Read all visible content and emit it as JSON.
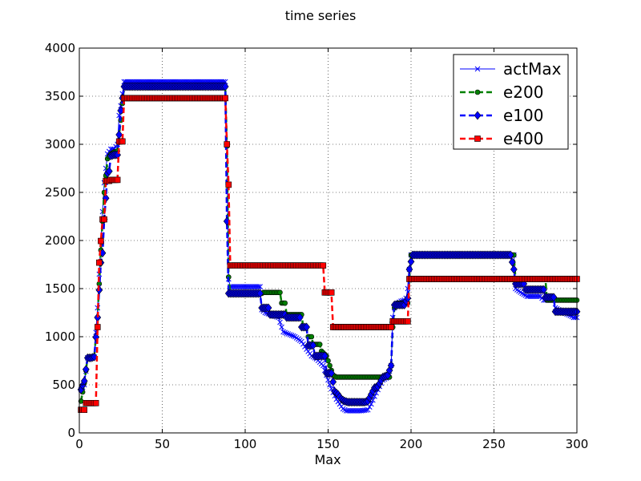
{
  "chart_data": {
    "type": "line",
    "title": "time series",
    "xlabel": "Max",
    "ylabel": "",
    "xlim": [
      0,
      300
    ],
    "ylim": [
      0,
      4000
    ],
    "xticks": [
      0,
      50,
      100,
      150,
      200,
      250,
      300
    ],
    "yticks": [
      0,
      500,
      1000,
      1500,
      2000,
      2500,
      3000,
      3500,
      4000
    ],
    "grid": true,
    "legend_position": "top-right",
    "series": [
      {
        "name": "actMax",
        "color": "#0000ff",
        "marker": "x",
        "line_style": "solid",
        "points": [
          [
            1,
            450
          ],
          [
            3,
            500
          ],
          [
            5,
            780
          ],
          [
            7,
            780
          ],
          [
            9,
            790
          ],
          [
            11,
            1300
          ],
          [
            13,
            2000
          ],
          [
            15,
            2600
          ],
          [
            17,
            2900
          ],
          [
            19,
            2950
          ],
          [
            21,
            2950
          ],
          [
            23,
            3000
          ],
          [
            24,
            3300
          ],
          [
            25,
            3400
          ],
          [
            27,
            3650
          ],
          [
            88,
            3650
          ],
          [
            89,
            3000
          ],
          [
            90,
            1600
          ],
          [
            91,
            1520
          ],
          [
            109,
            1520
          ],
          [
            110,
            1280
          ],
          [
            112,
            1250
          ],
          [
            120,
            1200
          ],
          [
            123,
            1050
          ],
          [
            130,
            1000
          ],
          [
            134,
            950
          ],
          [
            137,
            870
          ],
          [
            140,
            800
          ],
          [
            143,
            770
          ],
          [
            147,
            700
          ],
          [
            149,
            600
          ],
          [
            151,
            500
          ],
          [
            153,
            420
          ],
          [
            155,
            350
          ],
          [
            157,
            300
          ],
          [
            159,
            250
          ],
          [
            161,
            230
          ],
          [
            165,
            230
          ],
          [
            170,
            230
          ],
          [
            174,
            240
          ],
          [
            176,
            300
          ],
          [
            178,
            380
          ],
          [
            180,
            450
          ],
          [
            183,
            550
          ],
          [
            186,
            580
          ],
          [
            188,
            700
          ],
          [
            189,
            1200
          ],
          [
            190,
            1300
          ],
          [
            192,
            1350
          ],
          [
            194,
            1370
          ],
          [
            196,
            1380
          ],
          [
            197,
            1400
          ],
          [
            198,
            1500
          ],
          [
            199,
            1700
          ],
          [
            200,
            1850
          ],
          [
            262,
            1850
          ],
          [
            263,
            1500
          ],
          [
            267,
            1450
          ],
          [
            270,
            1420
          ],
          [
            278,
            1420
          ],
          [
            280,
            1380
          ],
          [
            286,
            1380
          ],
          [
            287,
            1300
          ],
          [
            292,
            1250
          ],
          [
            296,
            1220
          ],
          [
            298,
            1200
          ],
          [
            300,
            1200
          ]
        ]
      },
      {
        "name": "e200",
        "color": "#008000",
        "marker": "circle",
        "line_style": "dashed",
        "points": [
          [
            1,
            330
          ],
          [
            3,
            520
          ],
          [
            5,
            780
          ],
          [
            7,
            780
          ],
          [
            9,
            790
          ],
          [
            11,
            1200
          ],
          [
            13,
            1900
          ],
          [
            15,
            2500
          ],
          [
            17,
            2850
          ],
          [
            19,
            2900
          ],
          [
            21,
            2920
          ],
          [
            23,
            2930
          ],
          [
            24,
            3100
          ],
          [
            25,
            3250
          ],
          [
            27,
            3600
          ],
          [
            88,
            3600
          ],
          [
            89,
            2980
          ],
          [
            90,
            1620
          ],
          [
            91,
            1450
          ],
          [
            110,
            1450
          ],
          [
            111,
            1460
          ],
          [
            121,
            1460
          ],
          [
            122,
            1350
          ],
          [
            124,
            1350
          ],
          [
            125,
            1230
          ],
          [
            134,
            1230
          ],
          [
            135,
            1100
          ],
          [
            137,
            1100
          ],
          [
            138,
            1000
          ],
          [
            140,
            1000
          ],
          [
            141,
            920
          ],
          [
            145,
            920
          ],
          [
            146,
            850
          ],
          [
            149,
            800
          ],
          [
            151,
            700
          ],
          [
            153,
            600
          ],
          [
            155,
            580
          ],
          [
            187,
            580
          ],
          [
            188,
            700
          ],
          [
            189,
            1100
          ],
          [
            190,
            1300
          ],
          [
            192,
            1350
          ],
          [
            198,
            1350
          ],
          [
            199,
            1600
          ],
          [
            200,
            1850
          ],
          [
            262,
            1850
          ],
          [
            263,
            1600
          ],
          [
            281,
            1600
          ],
          [
            282,
            1380
          ],
          [
            300,
            1380
          ]
        ]
      },
      {
        "name": "e100",
        "color": "#0000ff",
        "marker": "diamond",
        "line_style": "dashed",
        "points": [
          [
            1,
            450
          ],
          [
            3,
            540
          ],
          [
            5,
            780
          ],
          [
            7,
            780
          ],
          [
            9,
            790
          ],
          [
            11,
            1200
          ],
          [
            13,
            1770
          ],
          [
            14,
            1870
          ],
          [
            15,
            2220
          ],
          [
            16,
            2440
          ],
          [
            17,
            2700
          ],
          [
            18,
            2720
          ],
          [
            19,
            2880
          ],
          [
            21,
            2890
          ],
          [
            23,
            2890
          ],
          [
            24,
            3100
          ],
          [
            25,
            3350
          ],
          [
            26,
            3480
          ],
          [
            27,
            3600
          ],
          [
            88,
            3600
          ],
          [
            89,
            2200
          ],
          [
            90,
            1450
          ],
          [
            106,
            1450
          ],
          [
            109,
            1450
          ],
          [
            110,
            1300
          ],
          [
            114,
            1300
          ],
          [
            115,
            1230
          ],
          [
            124,
            1230
          ],
          [
            125,
            1200
          ],
          [
            133,
            1200
          ],
          [
            134,
            1100
          ],
          [
            137,
            1100
          ],
          [
            138,
            910
          ],
          [
            141,
            910
          ],
          [
            142,
            800
          ],
          [
            148,
            800
          ],
          [
            149,
            620
          ],
          [
            152,
            620
          ],
          [
            153,
            530
          ],
          [
            154,
            430
          ],
          [
            156,
            400
          ],
          [
            158,
            350
          ],
          [
            160,
            330
          ],
          [
            162,
            320
          ],
          [
            172,
            320
          ],
          [
            174,
            330
          ],
          [
            176,
            400
          ],
          [
            178,
            470
          ],
          [
            180,
            480
          ],
          [
            183,
            580
          ],
          [
            186,
            600
          ],
          [
            188,
            700
          ],
          [
            189,
            1150
          ],
          [
            190,
            1330
          ],
          [
            192,
            1330
          ],
          [
            196,
            1330
          ],
          [
            197,
            1370
          ],
          [
            198,
            1400
          ],
          [
            199,
            1700
          ],
          [
            200,
            1780
          ],
          [
            201,
            1850
          ],
          [
            260,
            1850
          ],
          [
            262,
            1700
          ],
          [
            263,
            1550
          ],
          [
            268,
            1550
          ],
          [
            269,
            1490
          ],
          [
            280,
            1490
          ],
          [
            281,
            1410
          ],
          [
            286,
            1410
          ],
          [
            287,
            1260
          ],
          [
            300,
            1260
          ]
        ]
      },
      {
        "name": "e400",
        "color": "#ff0000",
        "marker": "square",
        "line_style": "dashed",
        "points": [
          [
            1,
            240
          ],
          [
            3,
            240
          ],
          [
            4,
            310
          ],
          [
            8,
            310
          ],
          [
            10,
            310
          ],
          [
            11,
            1100
          ],
          [
            12,
            1770
          ],
          [
            14,
            2220
          ],
          [
            15,
            2220
          ],
          [
            16,
            2620
          ],
          [
            18,
            2620
          ],
          [
            19,
            2630
          ],
          [
            23,
            2630
          ],
          [
            24,
            3030
          ],
          [
            26,
            3030
          ],
          [
            27,
            3480
          ],
          [
            88,
            3480
          ],
          [
            89,
            3000
          ],
          [
            90,
            2580
          ],
          [
            91,
            1740
          ],
          [
            147,
            1740
          ],
          [
            148,
            1460
          ],
          [
            152,
            1460
          ],
          [
            153,
            1100
          ],
          [
            188,
            1100
          ],
          [
            189,
            1160
          ],
          [
            198,
            1160
          ],
          [
            199,
            1600
          ],
          [
            300,
            1600
          ]
        ]
      }
    ]
  }
}
